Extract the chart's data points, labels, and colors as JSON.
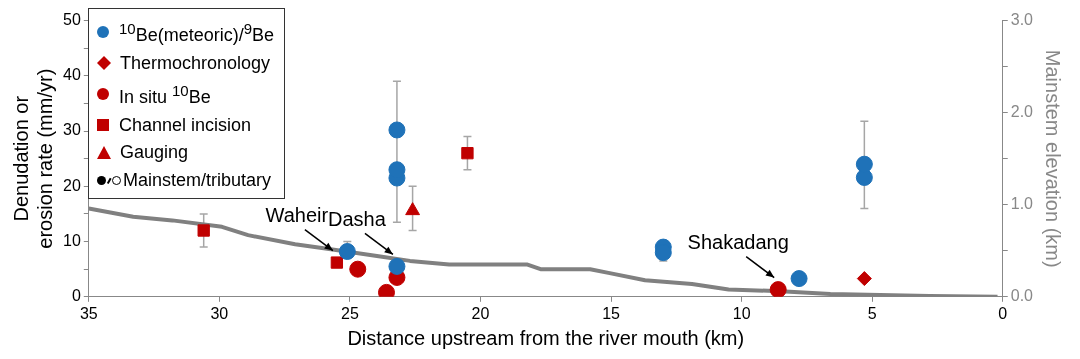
{
  "chart_data": {
    "type": "scatter",
    "xlabel": "Distance upstream from the river mouth (km)",
    "ylabel": "Denudation or erosion rate (mm/yr)",
    "y2label": "Mainstem elevation (km)",
    "xlim": [
      35,
      0
    ],
    "xticks": [
      35,
      30,
      25,
      20,
      15,
      10,
      5,
      0
    ],
    "ylim": [
      0,
      50
    ],
    "yticks": [
      0,
      {
        "value": 5,
        "label": null
      },
      10,
      {
        "value": 15,
        "label": null
      },
      20,
      {
        "value": 25,
        "label": null
      },
      30,
      {
        "value": 35,
        "label": null
      },
      40,
      {
        "value": 45,
        "label": null
      },
      50
    ],
    "y2lim": [
      0,
      3
    ],
    "y2ticks": [
      {
        "value": 0,
        "label": "0.0"
      },
      {
        "value": 0.5,
        "label": null
      },
      {
        "value": 1,
        "label": "1.0"
      },
      {
        "value": 1.5,
        "label": null
      },
      {
        "value": 2,
        "label": "2.0"
      },
      {
        "value": 2.5,
        "label": null
      },
      {
        "value": 3,
        "label": "3.0"
      }
    ],
    "grid": false,
    "legend": "top left",
    "annotations": [
      "Mainstem/tributary",
      {
        "text": "Waheir",
        "x": 25.5,
        "y": 6.2
      },
      {
        "text": "Dasha",
        "x": 23.2,
        "y": 5.5
      },
      {
        "text": "Shakadang",
        "x": 8.6,
        "y": 1.3
      }
    ],
    "series": [
      {
        "type": "line",
        "axis": "y2",
        "color": "#808080",
        "marker": "none",
        "x": [
          35,
          33.3,
          31.8,
          29.9,
          28.9,
          27.1,
          25.8,
          23.9,
          22.7,
          21.2,
          18.2,
          17.7,
          15.8,
          15.1,
          13.7,
          11.9,
          10.5,
          8.5,
          6.6,
          2.8,
          0.2
        ],
        "values": [
          0.96,
          0.87,
          0.83,
          0.76,
          0.67,
          0.57,
          0.52,
          0.44,
          0.39,
          0.35,
          0.35,
          0.3,
          0.3,
          0.26,
          0.18,
          0.14,
          0.08,
          0.06,
          0.03,
          0.01,
          0
        ]
      },
      {
        "name": "$^{10}$Be(meteoric)/$^{9}$Be",
        "color": "#1f72b8",
        "marker": "circle",
        "x": [
          13,
          13,
          5.3
        ],
        "values": [
          9,
          8,
          24
        ],
        "errors": [
          [
            6.5,
            10
          ],
          null,
          null
        ]
      },
      {
        "color": "#1f72b8",
        "marker": "circle",
        "x": [
          23.2,
          23.2,
          5.3
        ],
        "values": [
          30.2,
          23,
          21.6
        ],
        "errors": [
          null,
          [
            13.5,
            39
          ],
          [
            16,
            31.8
          ]
        ]
      },
      {
        "color": "#1f72b8",
        "marker": "circle",
        "x": [
          25.1,
          23.2,
          23.2,
          7.8
        ],
        "values": [
          8.2,
          21.5,
          5.5,
          3.3
        ],
        "errors": [
          [
            7,
            10
          ],
          null,
          null,
          null
        ]
      },
      {
        "name": "Thermochronology",
        "color": "#c00000",
        "marker": "diamond",
        "x": [
          5.3
        ],
        "values": [
          3.3
        ]
      },
      {
        "name": "In situ $^{10}$Be",
        "color": "#c00000",
        "marker": "circle",
        "x": [
          23.6,
          23.2
        ],
        "values": [
          0.8,
          3.5
        ]
      },
      {
        "color": "#c00000",
        "marker": "circle",
        "x": [
          24.7,
          8.6
        ],
        "values": [
          5,
          1.3
        ]
      },
      {
        "name": "Channel incision",
        "color": "#c00000",
        "marker": "square",
        "x": [
          20.5
        ],
        "values": [
          26
        ],
        "errors": [
          [
            23,
            29
          ]
        ]
      },
      {
        "color": "#c00000",
        "marker": "square",
        "x": [
          30.6,
          25.5
        ],
        "values": [
          12,
          6.2
        ],
        "errors": [
          [
            9,
            15
          ],
          null
        ]
      },
      {
        "name": "Gauging",
        "color": "#c00000",
        "marker": "triangle",
        "x": [
          22.6
        ],
        "values": [
          15.6
        ],
        "errors": [
          [
            12,
            20
          ]
        ]
      }
    ]
  }
}
